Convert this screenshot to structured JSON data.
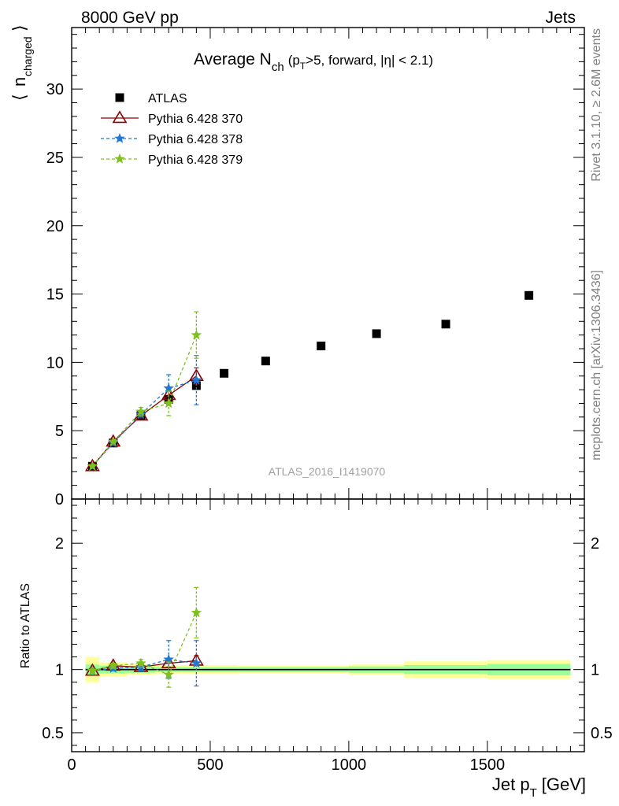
{
  "header": {
    "left": "8000 GeV pp",
    "right": "Jets"
  },
  "side_text": {
    "rivet": "Rivet 3.1.10, ≥ 2.6M events",
    "mcplots": "mcplots.cern.ch [arXiv:1306.3436]"
  },
  "watermark": "ATLAS_2016_I1419070",
  "chart_data": [
    {
      "type": "scatter",
      "title": "Average N_ch (p_T>5, forward, |η| < 2.1)",
      "title_parts": {
        "main": "Average N",
        "sub": "ch",
        "paren_open": "(p",
        "pt_sub": "T",
        "rest": ">5, forward, |η| < 2.1)"
      },
      "ylabel": "⟨ n_charged ⟩",
      "ylabel_parts": {
        "main": "n",
        "sub": "charged"
      },
      "xlim": [
        0,
        1850
      ],
      "ylim": [
        0,
        34.5
      ],
      "yticks": [
        0,
        5,
        10,
        15,
        20,
        25,
        30
      ],
      "ytick_labels": [
        "0",
        "5",
        "10",
        "15",
        "20",
        "25",
        "30"
      ],
      "legend_placement": "top-left",
      "series": [
        {
          "name": "ATLAS",
          "color": "#000000",
          "marker": "square",
          "x": [
            75,
            150,
            250,
            350,
            450,
            550,
            700,
            900,
            1100,
            1350,
            1650
          ],
          "y": [
            2.4,
            4.1,
            6.1,
            7.3,
            8.3,
            9.2,
            10.1,
            11.2,
            12.1,
            12.8,
            14.9
          ]
        },
        {
          "name": "Pythia 6.428 370",
          "color": "#8b0000",
          "marker": "triangle",
          "line": "solid",
          "x": [
            75,
            150,
            250,
            350,
            450
          ],
          "y": [
            2.4,
            4.2,
            6.1,
            7.6,
            9.0
          ],
          "err": [
            0.1,
            0.1,
            0.2,
            0.4,
            0.6
          ]
        },
        {
          "name": "Pythia 6.428 378",
          "color": "#1f77d4",
          "marker": "star",
          "line": "dashed",
          "x": [
            75,
            150,
            250,
            350,
            450
          ],
          "y": [
            2.4,
            4.1,
            6.2,
            8.1,
            8.7
          ],
          "err": [
            0.1,
            0.1,
            0.2,
            1.0,
            1.8
          ]
        },
        {
          "name": "Pythia 6.428 379",
          "color": "#7fbf1f",
          "marker": "star",
          "line": "dashed",
          "x": [
            75,
            150,
            250,
            350,
            450
          ],
          "y": [
            2.4,
            4.2,
            6.4,
            7.0,
            12.0
          ],
          "err": [
            0.1,
            0.1,
            0.3,
            0.9,
            1.7
          ]
        }
      ]
    },
    {
      "type": "scatter",
      "ylabel": "Ratio to ATLAS",
      "xlabel": "Jet p_T [GeV]",
      "xlabel_parts": {
        "main": "Jet p",
        "sub": "T",
        "unit": "[GeV]"
      },
      "xlim": [
        0,
        1850
      ],
      "ylim": [
        0.35,
        2.35
      ],
      "xticks": [
        0,
        500,
        1000,
        1500
      ],
      "xtick_labels": [
        "0",
        "500",
        "1000",
        "1500"
      ],
      "yticks": [
        0.5,
        1,
        2
      ],
      "ytick_labels": [
        "0.5",
        "1",
        "2"
      ],
      "reference_line": 1,
      "bands": {
        "x_edges": [
          50,
          100,
          200,
          300,
          400,
          500,
          600,
          800,
          1000,
          1200,
          1500,
          1800
        ],
        "green_halfwidth": [
          0.04,
          0.03,
          0.025,
          0.02,
          0.02,
          0.02,
          0.02,
          0.02,
          0.025,
          0.035,
          0.045
        ],
        "yellow_halfwidth": [
          0.1,
          0.055,
          0.04,
          0.035,
          0.035,
          0.035,
          0.03,
          0.03,
          0.04,
          0.065,
          0.075
        ],
        "green_color": "#99ff99",
        "yellow_color": "#ffff99"
      },
      "series": [
        {
          "name": "Pythia 6.428 370",
          "color": "#8b0000",
          "marker": "triangle",
          "line": "solid",
          "x": [
            75,
            150,
            250,
            350,
            450
          ],
          "y": [
            0.99,
            1.03,
            1.02,
            1.05,
            1.07
          ],
          "err": [
            0.01,
            0.01,
            0.02,
            0.03,
            0.04
          ]
        },
        {
          "name": "Pythia 6.428 378",
          "color": "#1f77d4",
          "marker": "star",
          "line": "dashed",
          "x": [
            75,
            150,
            250,
            350,
            450
          ],
          "y": [
            0.99,
            1.01,
            1.02,
            1.08,
            1.05
          ],
          "err": [
            0.02,
            0.02,
            0.03,
            0.15,
            0.18
          ]
        },
        {
          "name": "Pythia 6.428 379",
          "color": "#7fbf1f",
          "marker": "star",
          "line": "dashed",
          "x": [
            75,
            150,
            250,
            350,
            450
          ],
          "y": [
            0.99,
            1.03,
            1.05,
            0.96,
            1.45
          ],
          "err": [
            0.02,
            0.02,
            0.03,
            0.1,
            0.2
          ]
        }
      ]
    }
  ]
}
